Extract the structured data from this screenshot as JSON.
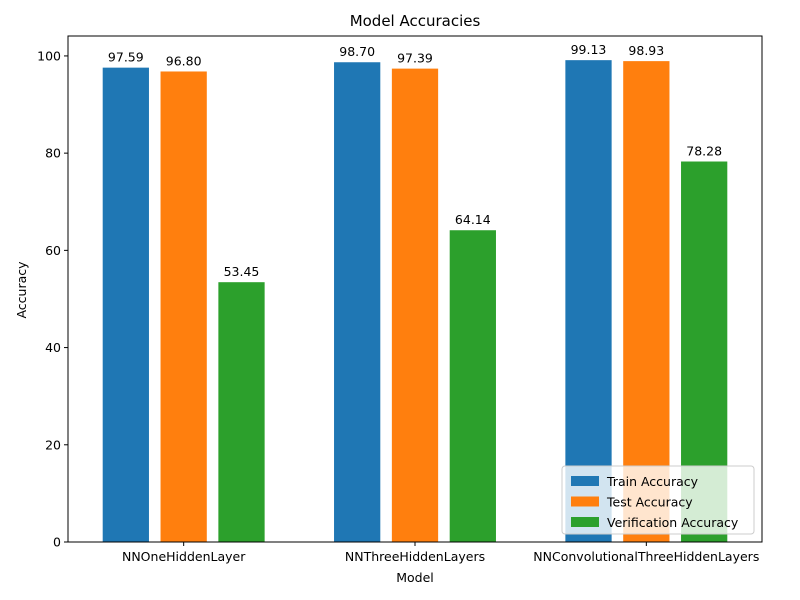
{
  "chart_data": {
    "type": "bar",
    "title": "Model Accuracies",
    "xlabel": "Model",
    "ylabel": "Accuracy",
    "categories": [
      "NNOneHiddenLayer",
      "NNThreeHiddenLayers",
      "NNConvolutionalThreeHiddenLayers"
    ],
    "series": [
      {
        "name": "Train Accuracy",
        "color": "#1f77b4",
        "values": [
          97.59,
          98.7,
          99.13
        ],
        "labels": [
          "97.59",
          "98.70",
          "99.13"
        ]
      },
      {
        "name": "Test Accuracy",
        "color": "#ff7f0e",
        "values": [
          96.8,
          97.39,
          98.93
        ],
        "labels": [
          "96.80",
          "97.39",
          "98.93"
        ]
      },
      {
        "name": "Verification Accuracy",
        "color": "#2ca02c",
        "values": [
          53.45,
          64.14,
          78.28
        ],
        "labels": [
          "53.45",
          "64.14",
          "78.28"
        ]
      }
    ],
    "ylim": [
      0,
      104.1
    ],
    "yticks": [
      0,
      20,
      40,
      60,
      80,
      100
    ],
    "ytick_labels": [
      "0",
      "20",
      "40",
      "60",
      "80",
      "100"
    ],
    "grid": false,
    "legend_position": "bottom-right"
  }
}
